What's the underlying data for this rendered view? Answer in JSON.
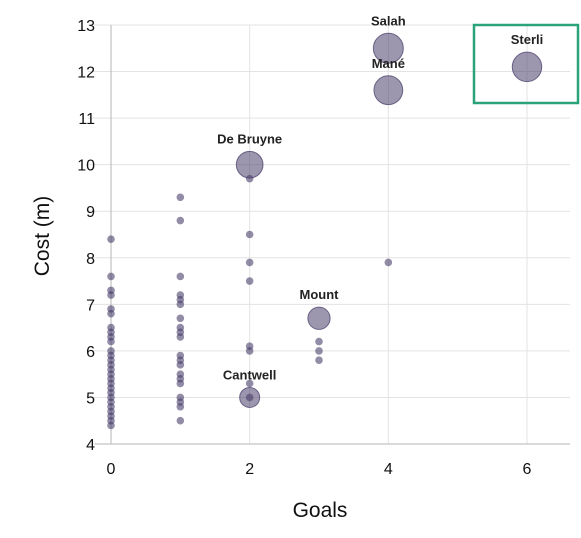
{
  "chart_data": {
    "type": "scatter",
    "title": "",
    "xlabel": "Goals",
    "ylabel": "Cost (m)",
    "xlim": [
      0,
      6
    ],
    "ylim": [
      4,
      13
    ],
    "x_ticks": [
      "0",
      "2",
      "4",
      "6"
    ],
    "y_ticks": [
      "4",
      "5",
      "6",
      "7",
      "8",
      "9",
      "10",
      "11",
      "12",
      "13"
    ],
    "grid": true,
    "point_color": "#4a3f6b",
    "highlight_color": "#2aa37a",
    "points": [
      {
        "x": 0,
        "y": 8.4
      },
      {
        "x": 0,
        "y": 7.6
      },
      {
        "x": 0,
        "y": 7.3
      },
      {
        "x": 0,
        "y": 7.2
      },
      {
        "x": 0,
        "y": 6.9
      },
      {
        "x": 0,
        "y": 6.8
      },
      {
        "x": 0,
        "y": 6.5
      },
      {
        "x": 0,
        "y": 6.4
      },
      {
        "x": 0,
        "y": 6.3
      },
      {
        "x": 0,
        "y": 6.2
      },
      {
        "x": 0,
        "y": 6.0
      },
      {
        "x": 0,
        "y": 5.9
      },
      {
        "x": 0,
        "y": 5.8
      },
      {
        "x": 0,
        "y": 5.7
      },
      {
        "x": 0,
        "y": 5.6
      },
      {
        "x": 0,
        "y": 5.5
      },
      {
        "x": 0,
        "y": 5.4
      },
      {
        "x": 0,
        "y": 5.3
      },
      {
        "x": 0,
        "y": 5.2
      },
      {
        "x": 0,
        "y": 5.1
      },
      {
        "x": 0,
        "y": 5.0
      },
      {
        "x": 0,
        "y": 4.9
      },
      {
        "x": 0,
        "y": 4.8
      },
      {
        "x": 0,
        "y": 4.7
      },
      {
        "x": 0,
        "y": 4.6
      },
      {
        "x": 0,
        "y": 4.5
      },
      {
        "x": 0,
        "y": 4.4
      },
      {
        "x": 1,
        "y": 9.3
      },
      {
        "x": 1,
        "y": 8.8
      },
      {
        "x": 1,
        "y": 7.6
      },
      {
        "x": 1,
        "y": 7.2
      },
      {
        "x": 1,
        "y": 7.1
      },
      {
        "x": 1,
        "y": 7.0
      },
      {
        "x": 1,
        "y": 6.7
      },
      {
        "x": 1,
        "y": 6.5
      },
      {
        "x": 1,
        "y": 6.4
      },
      {
        "x": 1,
        "y": 6.3
      },
      {
        "x": 1,
        "y": 5.9
      },
      {
        "x": 1,
        "y": 5.8
      },
      {
        "x": 1,
        "y": 5.7
      },
      {
        "x": 1,
        "y": 5.5
      },
      {
        "x": 1,
        "y": 5.4
      },
      {
        "x": 1,
        "y": 5.3
      },
      {
        "x": 1,
        "y": 5.0
      },
      {
        "x": 1,
        "y": 4.9
      },
      {
        "x": 1,
        "y": 4.8
      },
      {
        "x": 1,
        "y": 4.5
      },
      {
        "x": 2,
        "y": 9.7
      },
      {
        "x": 2,
        "y": 8.5
      },
      {
        "x": 2,
        "y": 7.9
      },
      {
        "x": 2,
        "y": 7.5
      },
      {
        "x": 2,
        "y": 6.1
      },
      {
        "x": 2,
        "y": 6.0
      },
      {
        "x": 2,
        "y": 5.3
      },
      {
        "x": 2,
        "y": 5.0
      },
      {
        "x": 3,
        "y": 6.2
      },
      {
        "x": 3,
        "y": 6.0
      },
      {
        "x": 3,
        "y": 5.8
      },
      {
        "x": 4,
        "y": 7.9
      }
    ],
    "labeled_points": [
      {
        "label": "Salah",
        "x": 4,
        "y": 12.5
      },
      {
        "label": "Mané",
        "x": 4,
        "y": 11.6
      },
      {
        "label": "De Bruyne",
        "x": 2,
        "y": 10.0
      },
      {
        "label": "Mount",
        "x": 3,
        "y": 6.7
      },
      {
        "label": "Cantwell",
        "x": 2,
        "y": 5.0
      },
      {
        "label": "Sterli",
        "x": 6,
        "y": 12.1
      }
    ]
  }
}
